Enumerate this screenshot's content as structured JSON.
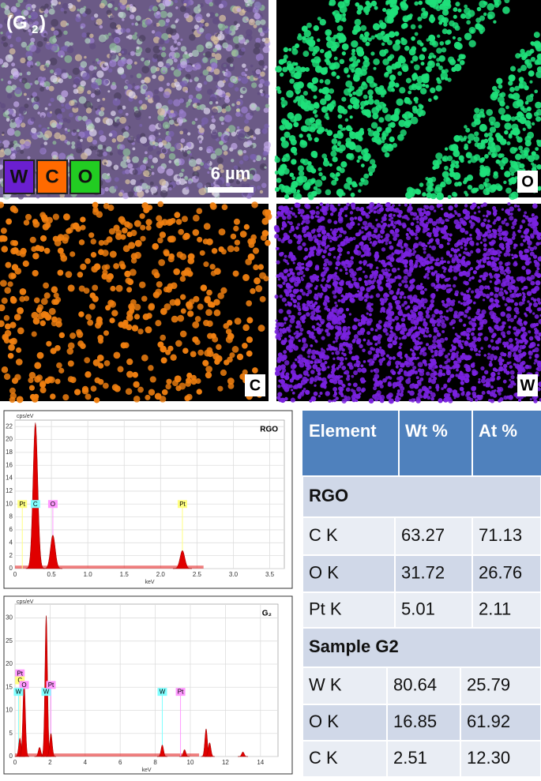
{
  "maps": {
    "panel_label": [
      "(G",
      "2",
      ")"
    ],
    "legend": [
      {
        "text": "W",
        "color": "#6a1fd0"
      },
      {
        "text": "C",
        "color": "#ff6a00"
      },
      {
        "text": "O",
        "color": "#22cc22"
      }
    ],
    "scale_bar": "6 µm",
    "tiles": [
      {
        "tag": "O",
        "color": "#1fe07a"
      },
      {
        "tag": "C",
        "color": "#f07f10"
      },
      {
        "tag": "W",
        "color": "#7a22e0"
      }
    ]
  },
  "spectra": [
    {
      "type": "spectrum",
      "title": "RGO",
      "y_label": "cps/eV",
      "x_label": "keV",
      "color": "#e00000",
      "grid": true,
      "xlim": [
        0,
        3.7
      ],
      "xticks": [
        0,
        0.5,
        {
          "value": 1,
          "label": "1.0"
        },
        1.5,
        {
          "value": 2,
          "label": "2.0"
        },
        2.5,
        {
          "value": 3,
          "label": "3.0"
        },
        3.5
      ],
      "ylim": [
        0,
        23
      ],
      "yticks": [
        0,
        2,
        4,
        6,
        8,
        10,
        12,
        14,
        16,
        18,
        20,
        22
      ],
      "peaks": {
        "x": [
          0.28,
          0.52,
          2.3
        ],
        "height": [
          22.6,
          5.2,
          2.8
        ]
      },
      "peak_labels": [
        {
          "text": "Pt",
          "x": 0.1,
          "y": 10,
          "color": "#ffff80"
        },
        {
          "text": "C",
          "x": 0.28,
          "y": 10,
          "color": "#80ffff"
        },
        {
          "text": "O",
          "x": 0.52,
          "y": 10,
          "color": "#ff99ff"
        },
        {
          "text": "Pt",
          "x": 2.3,
          "y": 10,
          "color": "#ffff80"
        }
      ]
    },
    {
      "type": "spectrum",
      "title": "G₂",
      "y_label": "cps/eV",
      "x_label": "keV",
      "color": "#e00000",
      "grid": true,
      "xlim": [
        0,
        15
      ],
      "xticks": [
        0,
        2,
        4,
        6,
        8,
        10,
        12,
        14
      ],
      "ylim": [
        0,
        33
      ],
      "yticks": [
        0,
        5,
        10,
        15,
        20,
        25,
        30
      ],
      "peaks": {
        "x": [
          0.28,
          0.52,
          1.4,
          1.78,
          2.05,
          8.4,
          9.67,
          10.9,
          11.1,
          13.0
        ],
        "height": [
          4,
          16,
          2,
          30.5,
          5,
          2.5,
          1.5,
          6,
          3,
          1
        ]
      },
      "peak_labels": [
        {
          "text": "Pt",
          "x": 0.28,
          "y": 18,
          "color": "#ff99ff"
        },
        {
          "text": "C",
          "x": 0.28,
          "y": 16.5,
          "color": "#ffff80"
        },
        {
          "text": "O",
          "x": 0.52,
          "y": 15.5,
          "color": "#ff99ff"
        },
        {
          "text": "W",
          "x": 0.2,
          "y": 14,
          "color": "#80ffff"
        },
        {
          "text": "W",
          "x": 1.78,
          "y": 14,
          "color": "#80ffff"
        },
        {
          "text": "Pt",
          "x": 2.05,
          "y": 15.5,
          "color": "#ff99ff"
        },
        {
          "text": "W",
          "x": 8.4,
          "y": 14,
          "color": "#80ffff"
        },
        {
          "text": "Pt",
          "x": 9.44,
          "y": 14,
          "color": "#ff99ff"
        }
      ]
    }
  ],
  "table": {
    "header": [
      "Element",
      "Wt %",
      "At %"
    ],
    "sections": [
      {
        "title": "RGO",
        "rows": [
          [
            "C   K",
            "63.27",
            "71.13"
          ],
          [
            "O    K",
            "31.72",
            "26.76"
          ],
          [
            "Pt  K",
            "5.01",
            "2.11"
          ]
        ]
      },
      {
        "title": "Sample G2",
        "rows": [
          [
            "W  K",
            "80.64",
            "25.79"
          ],
          [
            "O  K",
            "16.85",
            "61.92"
          ],
          [
            "C  K",
            "2.51",
            "12.30"
          ]
        ]
      }
    ]
  }
}
